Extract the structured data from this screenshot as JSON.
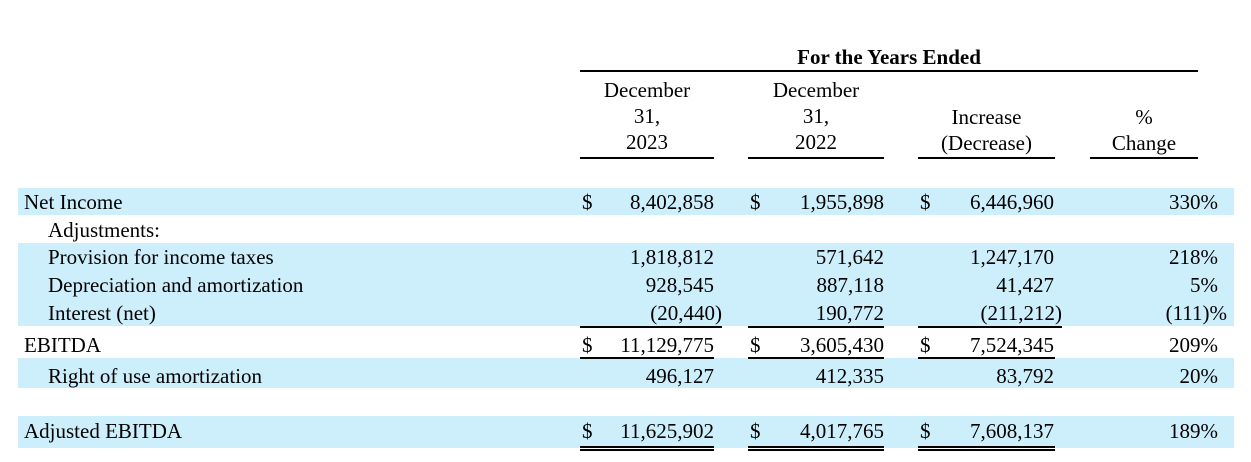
{
  "header": {
    "group_title": "For the Years Ended",
    "col1": [
      "December",
      "31,",
      "2023"
    ],
    "col2": [
      "December",
      "31,",
      "2022"
    ],
    "col3": [
      "Increase",
      "(Decrease)"
    ],
    "col4": [
      "%",
      "Change"
    ]
  },
  "rows": [
    {
      "label": "Net Income",
      "c1_cur": "$",
      "c1": "8,402,858",
      "c2_cur": "$",
      "c2": "1,955,898",
      "c3_cur": "$",
      "c3": "6,446,960",
      "pct": "330%"
    },
    {
      "label": "Adjustments:"
    },
    {
      "label": "Provision for income taxes",
      "c1": "1,818,812",
      "c2": "571,642",
      "c3": "1,247,170",
      "pct": "218%"
    },
    {
      "label": "Depreciation and amortization",
      "c1": "928,545",
      "c2": "887,118",
      "c3": "41,427",
      "pct": "5%"
    },
    {
      "label": "Interest (net)",
      "c1": "(20,440)",
      "c2": "190,772",
      "c3": "(211,212)",
      "pct": "(111)%"
    },
    {
      "label": "EBITDA",
      "c1_cur": "$",
      "c1": "11,129,775",
      "c2_cur": "$",
      "c2": "3,605,430",
      "c3_cur": "$",
      "c3": "7,524,345",
      "pct": "209%"
    },
    {
      "label": "Right of use amortization",
      "c1": "496,127",
      "c2": "412,335",
      "c3": "83,792",
      "pct": "20%"
    },
    {
      "label": "Adjusted EBITDA",
      "c1_cur": "$",
      "c1": "11,625,902",
      "c2_cur": "$",
      "c2": "4,017,765",
      "c3_cur": "$",
      "c3": "7,608,137",
      "pct": "189%"
    }
  ]
}
